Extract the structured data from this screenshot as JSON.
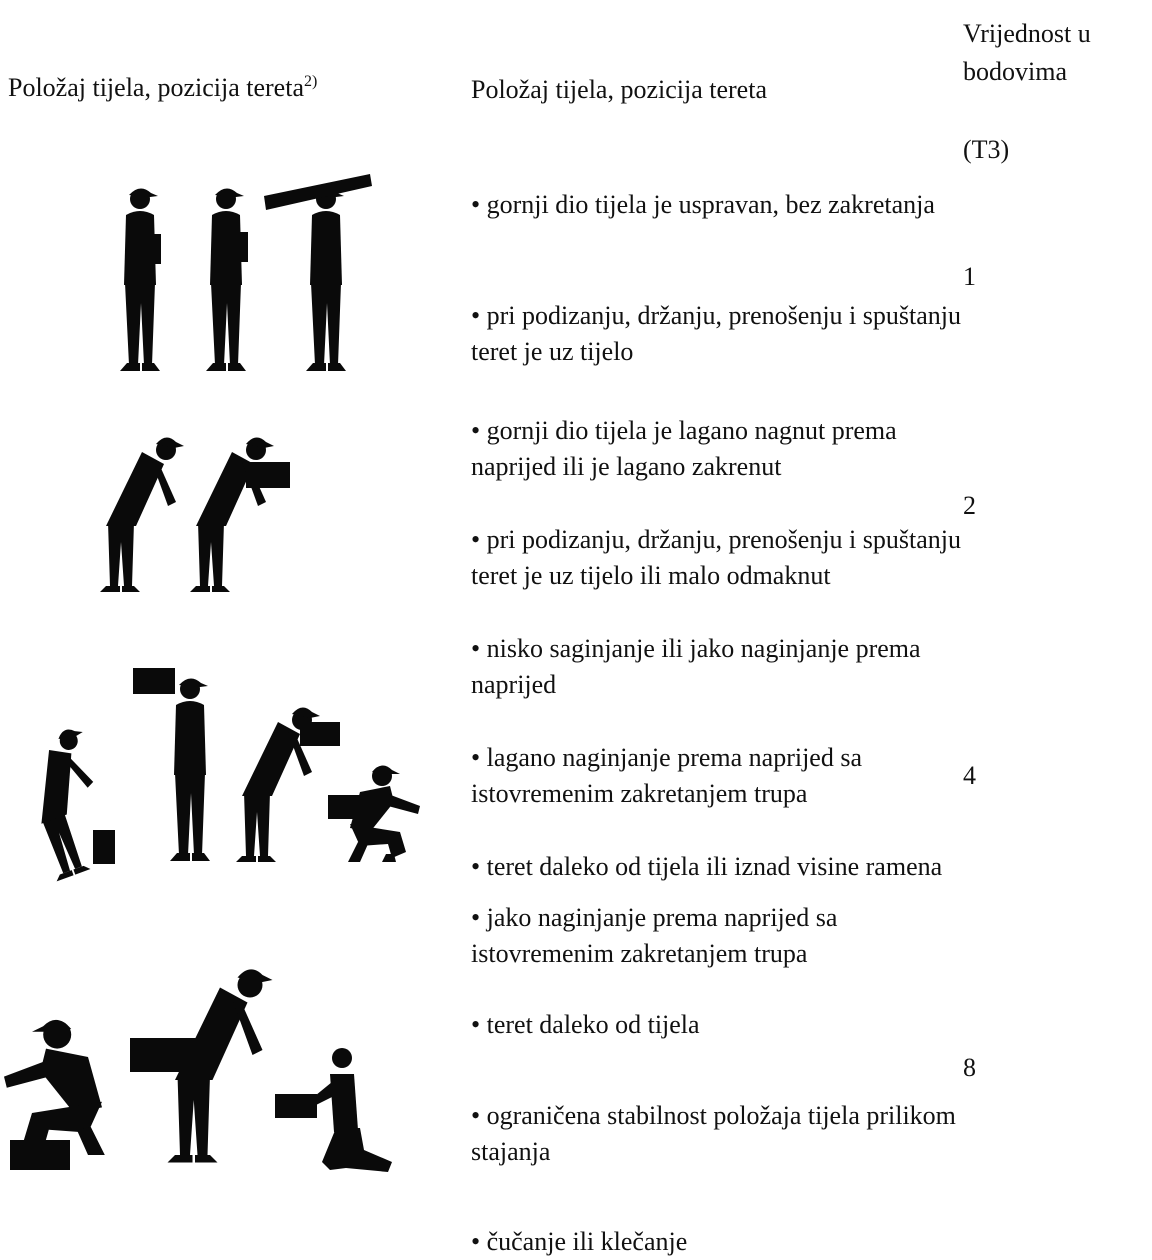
{
  "header": {
    "col1": "Položaj tijela, pozicija tereta",
    "col1_note": "2)",
    "col2": "Položaj tijela, pozicija tereta",
    "col3": "Vrijednost u bodovima",
    "col3_code": "(T3)"
  },
  "rows": [
    {
      "items": [
        "• gornji dio tijela je uspravan, bez zakretanja",
        "• pri podizanju, držanju, prenošenju i spuštanju teret je uz tijelo"
      ],
      "value": 1
    },
    {
      "items": [
        "• gornji dio tijela je lagano nagnut prema naprijed ili je lagano zakrenut",
        "• pri podizanju, držanju, prenošenju i spuštanju teret je uz tijelo ili malo odmaknut"
      ],
      "value": 2
    },
    {
      "items": [
        "• nisko saginjanje ili jako naginjanje prema naprijed",
        "• lagano naginjanje prema naprijed sa istovremenim zakretanjem trupa",
        "• teret daleko od tijela ili iznad visine ramena"
      ],
      "value": 4
    },
    {
      "items": [
        "• jako naginjanje prema naprijed sa istovremenim zakretanjem trupa",
        "• teret daleko od tijela",
        "• ograničena stabilnost položaja tijela prilikom stajanja",
        "• čučanje ili klečanje"
      ],
      "value": 8
    }
  ]
}
